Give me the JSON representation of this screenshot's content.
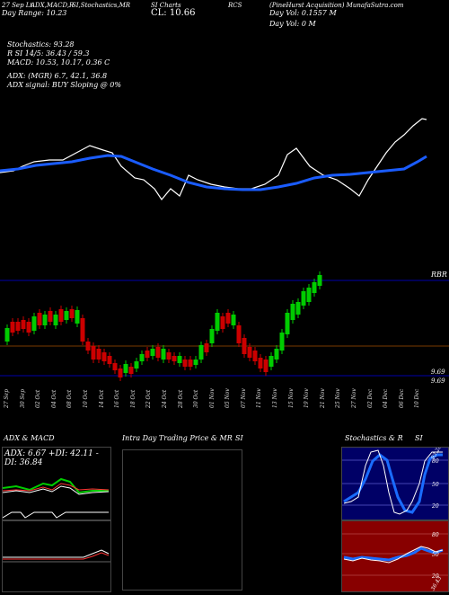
{
  "header": {
    "line1_a": "27 Sep Lt",
    "line1_b": "ADX,MACD,R",
    "line1_c": "SI,Stochastics,MR",
    "line1_d": "SI Charts",
    "line1_e": "RCS",
    "line1_f": "(PineHurst Acquisition) MunafaSutra.com",
    "line2_a": "Day Range: 10.23",
    "line2_b": "CL: 10.66",
    "line2_c": "Day Vol: 0.1557 M",
    "line3": "Day Vol: 0   M"
  },
  "indicators": {
    "stoch_line": "Stochastics: 93.28",
    "rsi_line": "R                SI 14/5: 36.43 / 59.3",
    "macd_line": "MACD: 10.53, 10.17, 0.36   C",
    "adx_line": "ADX:                                (MGR) 6.7, 42.1, 36.8",
    "adx_signal": "ADX   signal:                          BUY Sloping @ 0%"
  },
  "price_labels": {
    "right_top": "RBR",
    "right_mid": "9.69",
    "right_bot": "9.69"
  },
  "dates": [
    "27 Sep",
    "30 Sep",
    "02 Oct",
    "04 Oct",
    "08 Oct",
    "10 Oct",
    "14 Oct",
    "16 Oct",
    "18 Oct",
    "22 Oct",
    "24 Oct",
    "28 Oct",
    "30 Oct",
    "01 Nov",
    "05 Nov",
    "07 Nov",
    "11 Nov",
    "13 Nov",
    "15 Nov",
    "19 Nov",
    "21 Nov",
    "25 Nov",
    "27 Nov",
    "02 Dec",
    "04 Dec",
    "06 Dec",
    "10 Dec"
  ],
  "panels": {
    "adx_title": "ADX  & MACD",
    "adx_values": "ADX: 6.67 +DI: 42.11 -DI: 36.84",
    "intra_title": "Intra  Day Trading Price  & MR",
    "intra_si": "SI",
    "stoch_title": "Stochastics & R",
    "stoch_si": "SI",
    "stoch_badge": "93.28",
    "rsi_badge": "36.43",
    "stoch_ticks": [
      "80",
      "50",
      "20"
    ],
    "rsi_ticks": [
      "80",
      "50",
      "20"
    ]
  },
  "colors": {
    "up": "#00cc00",
    "down": "#cc0000",
    "ema": "#1a5cff",
    "rsi_bg": "#880000",
    "stoch_bg": "#000066"
  }
}
